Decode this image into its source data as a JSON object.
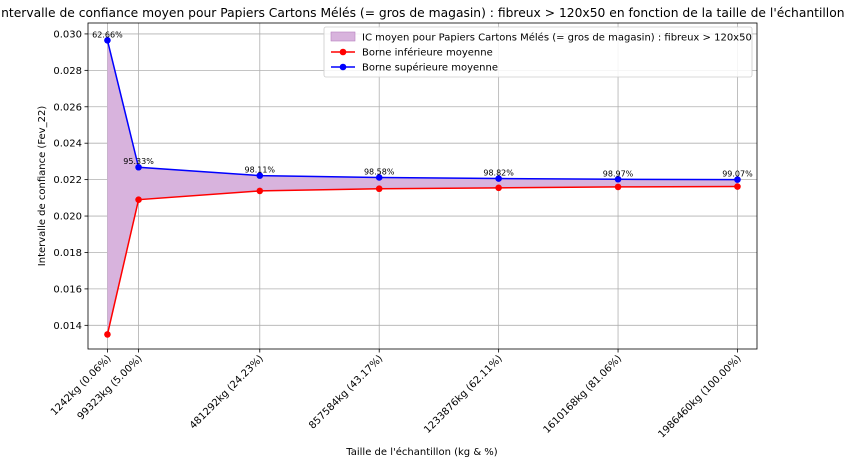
{
  "chart_data": {
    "type": "line",
    "title": "Intervalle de confiance moyen pour Papiers Cartons Mélés (= gros de magasin) : fibreux > 120x50 en fonction de la taille de l'échantillon",
    "xlabel": "Taille de l'échantillon (kg & %)",
    "ylabel": "Intervalle de confiance (Fev_22)",
    "x": [
      1242,
      99323,
      481292,
      857584,
      1233876,
      1610168,
      1986460
    ],
    "x_tick_labels": [
      "1242kg (0.06%)",
      "99323kg (5.00%)",
      "481292kg (24.23%)",
      "857584kg (43.17%)",
      "1233876kg (62.11%)",
      "1610168kg (81.06%)",
      "1986460kg (100.00%)"
    ],
    "xlim": [
      -60000,
      2048000
    ],
    "ylim": [
      0.0127,
      0.0306
    ],
    "y_ticks": [
      "0.014",
      "0.016",
      "0.018",
      "0.020",
      "0.022",
      "0.024",
      "0.026",
      "0.028",
      "0.030"
    ],
    "y_tick_values": [
      0.014,
      0.016,
      0.018,
      0.02,
      0.022,
      0.024,
      0.026,
      0.028,
      0.03
    ],
    "grid": true,
    "legend_position": "top-right",
    "fill": {
      "name": "IC moyen pour Papiers Cartons Mélés (= gros de magasin) : fibreux > 120x50",
      "color": "#d8b3dd"
    },
    "series": [
      {
        "name": "Borne inférieure moyenne",
        "color": "#ff0000",
        "values": [
          0.0135,
          0.0209,
          0.02138,
          0.0215,
          0.02155,
          0.0216,
          0.02162
        ]
      },
      {
        "name": "Borne supérieure moyenne",
        "color": "#0000ff",
        "values": [
          0.02965,
          0.02268,
          0.02222,
          0.02212,
          0.02206,
          0.02202,
          0.022
        ]
      }
    ],
    "annotations": [
      "62.66%",
      "95.33%",
      "98.11%",
      "98.58%",
      "98.82%",
      "98.97%",
      "99.07%"
    ]
  }
}
